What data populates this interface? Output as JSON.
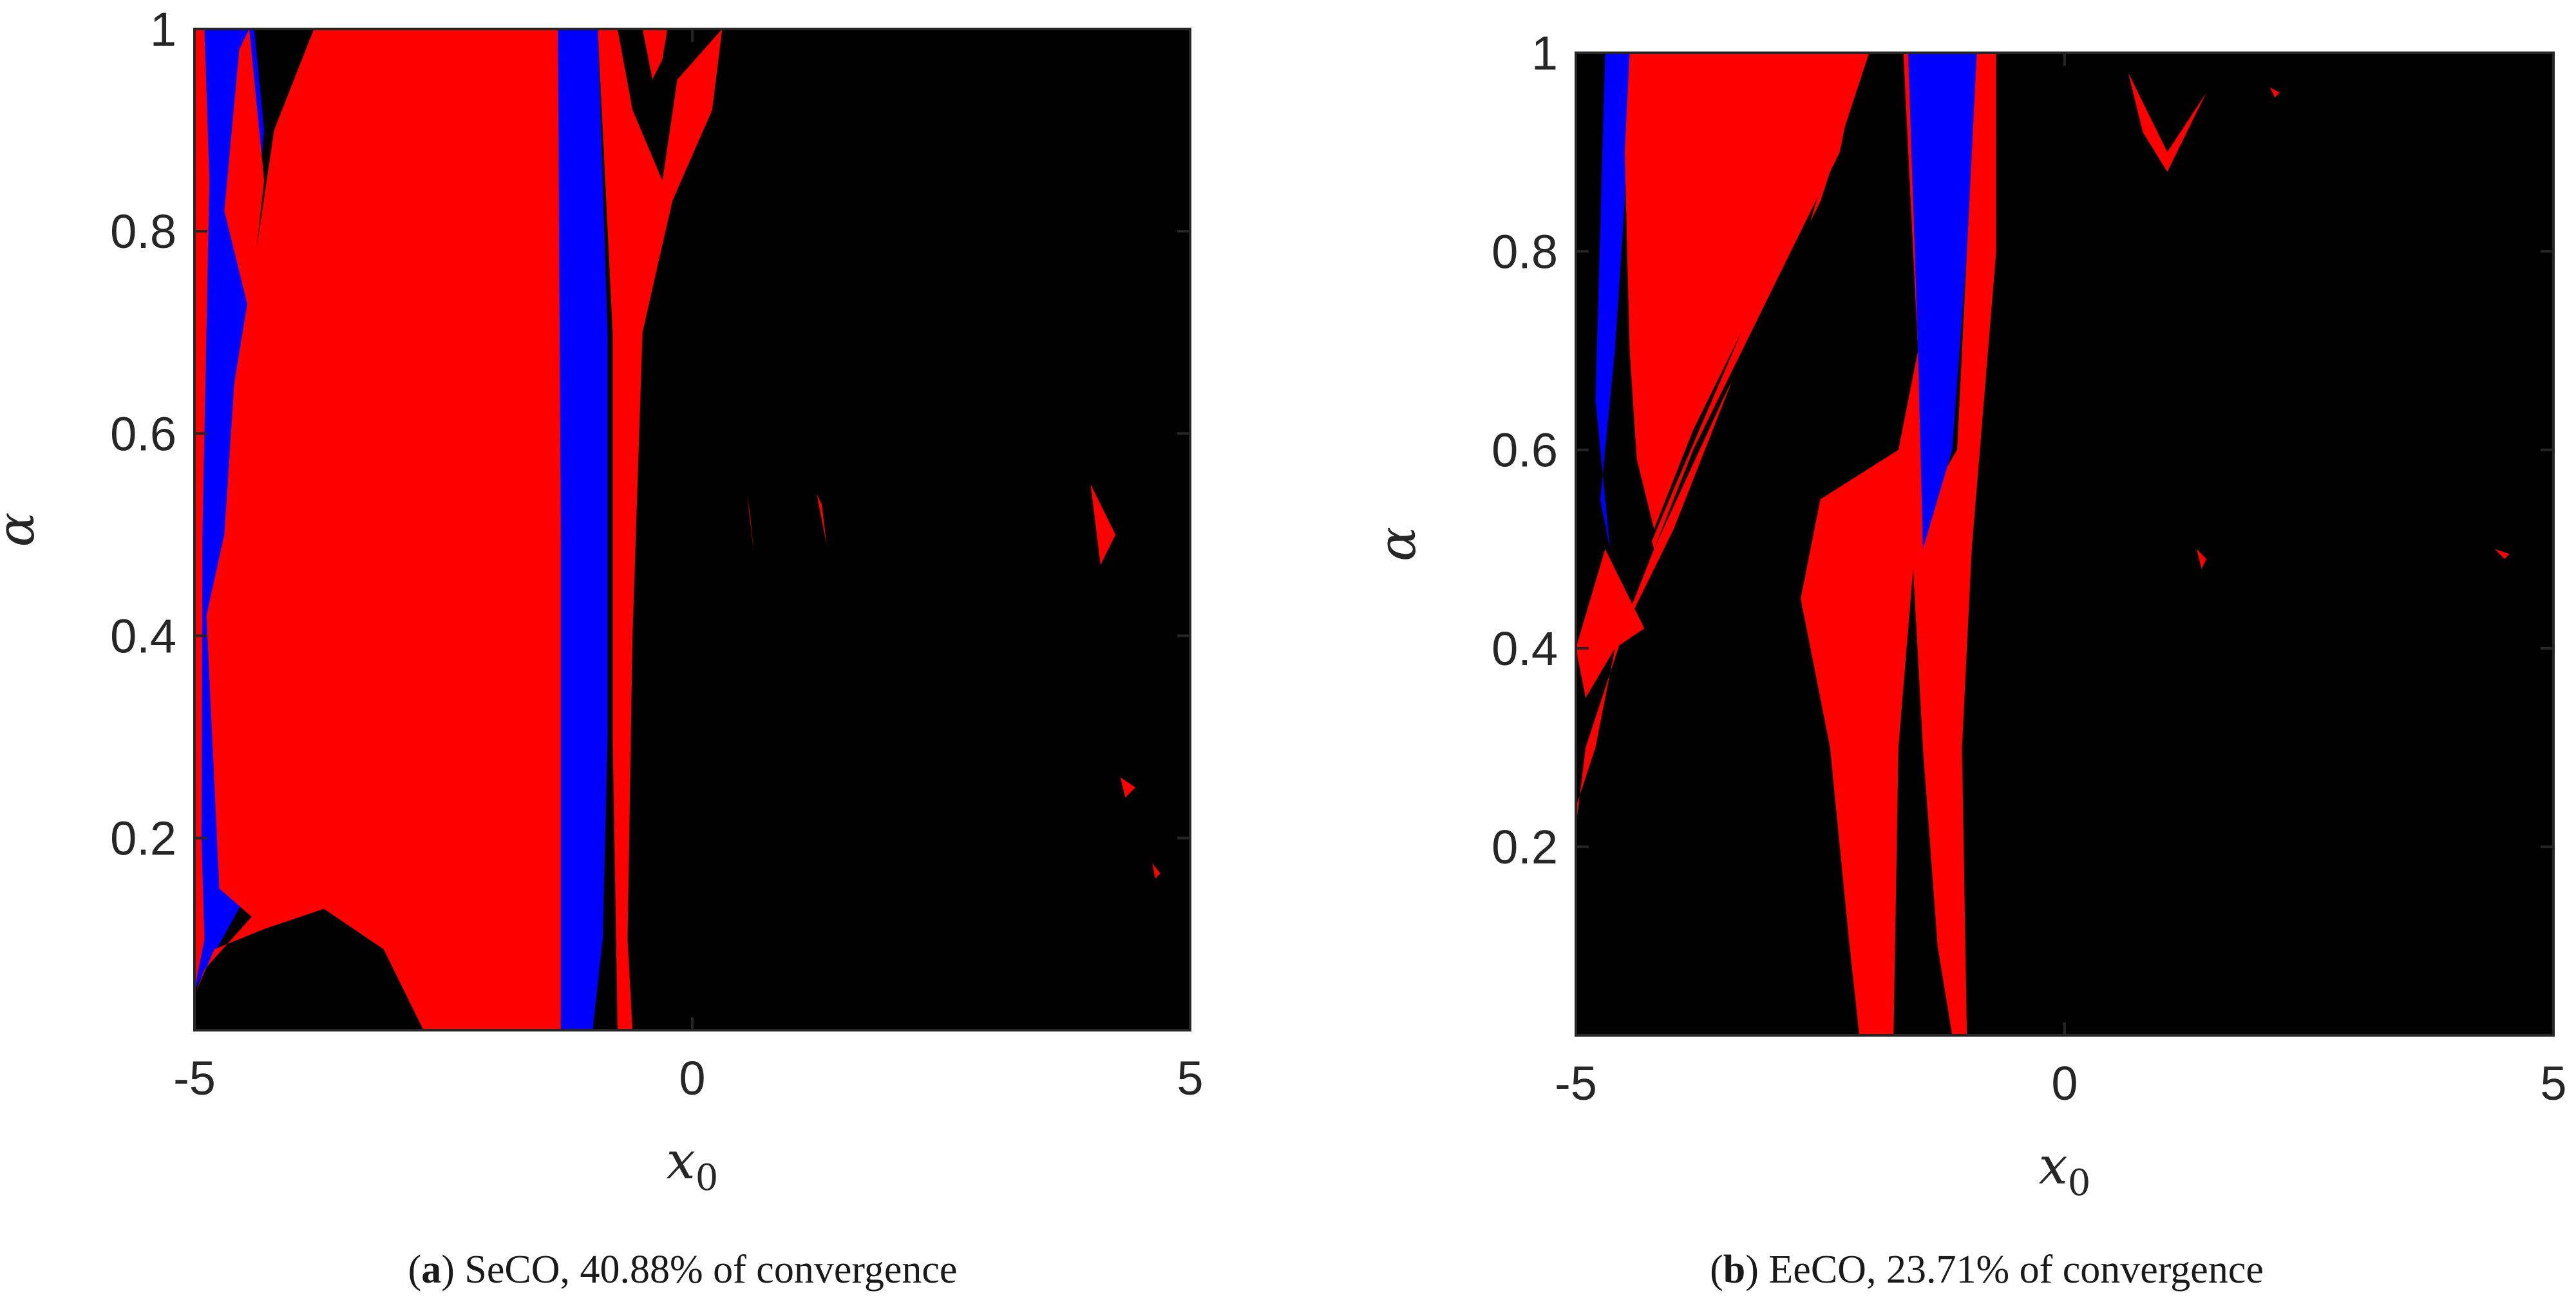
{
  "figure": {
    "captions": [
      {
        "open": "(",
        "letter": "a",
        "close": ")",
        "text": " SeCO, 40.88% of convergence"
      },
      {
        "open": "(",
        "letter": "b",
        "close": ")",
        "text": " EeCO, 23.71% of convergence"
      }
    ]
  },
  "colors": {
    "background": "#000000",
    "red": "#ff0000",
    "blue": "#0000ff",
    "frame": "#262626"
  },
  "chart_data": [
    {
      "type": "heatmap",
      "title": "",
      "xlabel": "x0",
      "xlabel_base": "x",
      "xlabel_sub": "0",
      "ylabel": "α",
      "xlim": [
        -5,
        5
      ],
      "ylim": [
        0.01,
        1
      ],
      "xticks": [
        -5,
        0,
        5
      ],
      "xtick_labels": [
        "-5",
        "0",
        "5"
      ],
      "yticks": [
        0.2,
        0.4,
        0.6,
        0.8,
        1
      ],
      "ytick_labels": [
        "0.2",
        "0.4",
        "0.6",
        "0.8",
        "1"
      ],
      "grid": false,
      "convergence_percent": 40.88,
      "regions": [
        {
          "color": "blue",
          "points": [
            [
              -4.97,
              1.0
            ],
            [
              -4.9,
              0.8
            ],
            [
              -4.95,
              0.5
            ],
            [
              -4.98,
              0.2
            ],
            [
              -5.0,
              0.05
            ],
            [
              -4.5,
              0.14
            ],
            [
              -3.6,
              0.165
            ],
            [
              -3.0,
              0.12
            ],
            [
              -2.55,
              0.01
            ],
            [
              -2.3,
              0.01
            ],
            [
              -2.3,
              0.3
            ],
            [
              -4.5,
              0.3
            ],
            [
              -4.5,
              0.7
            ],
            [
              -4.3,
              0.9
            ],
            [
              -4.4,
              1.0
            ]
          ]
        },
        {
          "color": "red",
          "points": [
            [
              -5.0,
              1.0
            ],
            [
              -4.9,
              1.0
            ],
            [
              -4.85,
              0.85
            ],
            [
              -4.92,
              0.5
            ],
            [
              -4.93,
              0.2
            ],
            [
              -4.9,
              0.1
            ],
            [
              -5.0,
              0.05
            ]
          ]
        },
        {
          "color": "red",
          "points": [
            [
              -4.88,
              0.42
            ],
            [
              -4.75,
              0.15
            ],
            [
              -4.4,
              0.12
            ],
            [
              -3.7,
              0.15
            ],
            [
              -3.1,
              0.11
            ],
            [
              -2.6,
              0.01
            ],
            [
              -1.32,
              0.01
            ],
            [
              -1.32,
              1.0
            ],
            [
              -3.8,
              1.0
            ],
            [
              -4.2,
              0.9
            ],
            [
              -4.35,
              0.8
            ],
            [
              -4.6,
              0.65
            ],
            [
              -4.7,
              0.5
            ]
          ]
        },
        {
          "color": "red",
          "points": [
            [
              -4.7,
              0.82
            ],
            [
              -4.55,
              0.98
            ],
            [
              -4.45,
              1.0
            ],
            [
              -4.3,
              0.85
            ],
            [
              -4.45,
              0.72
            ]
          ]
        },
        {
          "color": "red",
          "points": [
            [
              -5.0,
              0.045
            ],
            [
              -4.8,
              0.09
            ],
            [
              -4.3,
              0.11
            ],
            [
              -3.7,
              0.13
            ],
            [
              -3.1,
              0.09
            ],
            [
              -2.7,
              0.01
            ],
            [
              -2.55,
              0.01
            ],
            [
              -3.0,
              0.115
            ],
            [
              -3.7,
              0.15
            ],
            [
              -4.4,
              0.125
            ],
            [
              -4.9,
              0.07
            ]
          ]
        },
        {
          "color": "black",
          "points": [
            [
              -5.0,
              0.045
            ],
            [
              -4.9,
              0.025
            ],
            [
              -4.5,
              0.09
            ],
            [
              -3.8,
              0.12
            ],
            [
              -3.1,
              0.07
            ],
            [
              -2.8,
              0.01
            ],
            [
              -5.0,
              0.01
            ]
          ]
        },
        {
          "color": "blue",
          "points": [
            [
              -1.35,
              1.0
            ],
            [
              -0.95,
              1.0
            ],
            [
              -0.85,
              0.7
            ],
            [
              -0.85,
              0.3
            ],
            [
              -0.9,
              0.1
            ],
            [
              -1.0,
              0.01
            ],
            [
              -1.32,
              0.01
            ],
            [
              -1.32,
              0.5
            ]
          ]
        },
        {
          "color": "red",
          "points": [
            [
              -0.95,
              1.0
            ],
            [
              -0.75,
              1.0
            ],
            [
              -0.6,
              0.92
            ],
            [
              -0.3,
              0.85
            ],
            [
              -0.15,
              0.95
            ],
            [
              0.3,
              1.0
            ],
            [
              0.2,
              0.92
            ],
            [
              -0.2,
              0.83
            ],
            [
              -0.5,
              0.7
            ],
            [
              -0.6,
              0.4
            ],
            [
              -0.65,
              0.1
            ],
            [
              -0.6,
              0.01
            ],
            [
              -0.75,
              0.01
            ],
            [
              -0.8,
              0.3
            ],
            [
              -0.8,
              0.7
            ],
            [
              -0.9,
              0.9
            ]
          ]
        },
        {
          "color": "red",
          "points": [
            [
              -0.5,
              1.0
            ],
            [
              -0.4,
              0.95
            ],
            [
              -0.3,
              0.97
            ],
            [
              -0.25,
              1.0
            ]
          ]
        },
        {
          "color": "red",
          "points": [
            [
              0.55,
              0.54
            ],
            [
              0.62,
              0.48
            ],
            [
              0.58,
              0.52
            ]
          ]
        },
        {
          "color": "red",
          "points": [
            [
              1.25,
              0.54
            ],
            [
              1.35,
              0.49
            ],
            [
              1.3,
              0.53
            ]
          ]
        },
        {
          "color": "red",
          "points": [
            [
              4.0,
              0.55
            ],
            [
              4.25,
              0.5
            ],
            [
              4.1,
              0.47
            ]
          ]
        },
        {
          "color": "red",
          "points": [
            [
              4.3,
              0.26
            ],
            [
              4.45,
              0.25
            ],
            [
              4.35,
              0.24
            ]
          ]
        },
        {
          "color": "red",
          "points": [
            [
              4.62,
              0.175
            ],
            [
              4.7,
              0.165
            ],
            [
              4.65,
              0.16
            ]
          ]
        }
      ]
    },
    {
      "type": "heatmap",
      "title": "",
      "xlabel": "x0",
      "xlabel_base": "x",
      "xlabel_sub": "0",
      "ylabel": "α",
      "xlim": [
        -5,
        5
      ],
      "ylim": [
        0.01,
        1
      ],
      "xticks": [
        -5,
        0,
        5
      ],
      "xtick_labels": [
        "-5",
        "0",
        "5"
      ],
      "yticks": [
        0.2,
        0.4,
        0.6,
        0.8,
        1
      ],
      "ytick_labels": [
        "0.2",
        "0.4",
        "0.6",
        "0.8",
        "1"
      ],
      "grid": false,
      "convergence_percent": 23.71,
      "regions": [
        {
          "color": "blue",
          "points": [
            [
              -4.7,
              1.0
            ],
            [
              -4.45,
              1.0
            ],
            [
              -4.5,
              0.85
            ],
            [
              -4.6,
              0.7
            ],
            [
              -4.75,
              0.55
            ],
            [
              -4.65,
              0.5
            ],
            [
              -4.8,
              0.65
            ]
          ]
        },
        {
          "color": "red",
          "points": [
            [
              -4.45,
              1.0
            ],
            [
              -2.1,
              1.0
            ],
            [
              -2.3,
              0.9
            ],
            [
              -2.8,
              0.8
            ],
            [
              -3.3,
              0.7
            ],
            [
              -3.8,
              0.6
            ],
            [
              -4.2,
              0.5
            ],
            [
              -4.35,
              0.55
            ],
            [
              -4.45,
              0.7
            ],
            [
              -4.5,
              0.9
            ]
          ]
        },
        {
          "color": "black",
          "points": [
            [
              -4.45,
              0.62
            ],
            [
              -4.2,
              0.52
            ],
            [
              -3.8,
              0.62
            ],
            [
              -3.3,
              0.72
            ],
            [
              -4.0,
              0.56
            ],
            [
              -4.3,
              0.49
            ]
          ]
        },
        {
          "color": "red",
          "points": [
            [
              -5.0,
              0.24
            ],
            [
              -4.8,
              0.3
            ],
            [
              -4.6,
              0.4
            ],
            [
              -4.2,
              0.5
            ],
            [
              -3.5,
              0.65
            ],
            [
              -2.6,
              0.83
            ],
            [
              -2.1,
              1.0
            ],
            [
              -2.0,
              1.0
            ],
            [
              -2.5,
              0.85
            ],
            [
              -3.4,
              0.67
            ],
            [
              -4.0,
              0.52
            ],
            [
              -4.5,
              0.42
            ],
            [
              -4.9,
              0.3
            ],
            [
              -5.0,
              0.22
            ]
          ]
        },
        {
          "color": "red",
          "points": [
            [
              -5.0,
              0.4
            ],
            [
              -4.7,
              0.5
            ],
            [
              -4.5,
              0.46
            ],
            [
              -4.3,
              0.42
            ],
            [
              -4.6,
              0.4
            ],
            [
              -4.9,
              0.35
            ]
          ]
        },
        {
          "color": "red",
          "points": [
            [
              -1.65,
              1.0
            ],
            [
              -1.5,
              0.7
            ],
            [
              -1.7,
              0.6
            ],
            [
              -2.5,
              0.55
            ],
            [
              -2.7,
              0.45
            ],
            [
              -2.4,
              0.3
            ],
            [
              -2.2,
              0.1
            ],
            [
              -2.1,
              0.01
            ],
            [
              -1.75,
              0.01
            ],
            [
              -1.7,
              0.3
            ],
            [
              -1.55,
              0.48
            ],
            [
              -1.45,
              0.3
            ],
            [
              -1.3,
              0.1
            ],
            [
              -1.15,
              0.01
            ],
            [
              -1.0,
              0.01
            ],
            [
              -1.05,
              0.3
            ],
            [
              -0.95,
              0.5
            ],
            [
              -0.7,
              0.8
            ],
            [
              -0.7,
              1.0
            ],
            [
              -0.9,
              1.0
            ],
            [
              -1.1,
              0.6
            ],
            [
              -1.4,
              0.55
            ],
            [
              -1.55,
              0.85
            ],
            [
              -1.6,
              1.0
            ]
          ]
        },
        {
          "color": "blue",
          "points": [
            [
              -1.6,
              1.0
            ],
            [
              -0.9,
              1.0
            ],
            [
              -1.0,
              0.8
            ],
            [
              -1.15,
              0.6
            ],
            [
              -1.3,
              0.55
            ],
            [
              -1.45,
              0.5
            ],
            [
              -1.5,
              0.7
            ]
          ]
        },
        {
          "color": "red",
          "points": [
            [
              0.65,
              0.98
            ],
            [
              1.05,
              0.9
            ],
            [
              1.45,
              0.96
            ],
            [
              1.3,
              0.93
            ],
            [
              1.05,
              0.88
            ],
            [
              0.8,
              0.92
            ]
          ]
        },
        {
          "color": "red",
          "points": [
            [
              1.35,
              0.5
            ],
            [
              1.45,
              0.49
            ],
            [
              1.4,
              0.48
            ]
          ]
        },
        {
          "color": "red",
          "points": [
            [
              4.4,
              0.5
            ],
            [
              4.55,
              0.495
            ],
            [
              4.5,
              0.49
            ]
          ]
        },
        {
          "color": "red",
          "points": [
            [
              2.1,
              0.965
            ],
            [
              2.2,
              0.96
            ],
            [
              2.15,
              0.955
            ]
          ]
        }
      ]
    }
  ]
}
